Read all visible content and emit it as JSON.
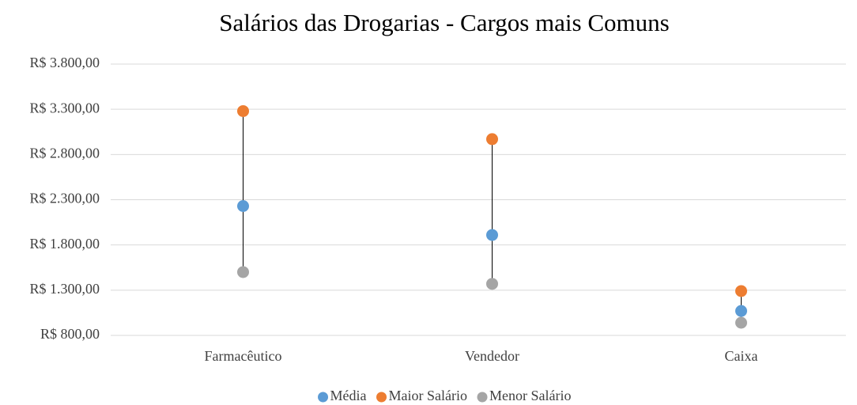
{
  "chart_data": {
    "type": "dot",
    "title": "Salários das Drogarias - Cargos mais Comuns",
    "categories": [
      "Farmacêutico",
      "Vendedor",
      "Caixa"
    ],
    "series": [
      {
        "name": "Média",
        "color": "#5b9bd5",
        "values": [
          2230,
          1910,
          1070
        ]
      },
      {
        "name": "Maior Salário",
        "color": "#ed7d31",
        "values": [
          3280,
          2970,
          1290
        ]
      },
      {
        "name": "Menor Salário",
        "color": "#a5a5a5",
        "values": [
          1500,
          1370,
          940
        ]
      }
    ],
    "ylim": [
      800,
      3800
    ],
    "yticks": [
      {
        "value": 800,
        "label": "R$ 800,00"
      },
      {
        "value": 1300,
        "label": "R$ 1.300,00"
      },
      {
        "value": 1800,
        "label": "R$ 1.800,00"
      },
      {
        "value": 2300,
        "label": "R$ 2.300,00"
      },
      {
        "value": 2800,
        "label": "R$ 2.800,00"
      },
      {
        "value": 3300,
        "label": "R$ 3.300,00"
      },
      {
        "value": 3800,
        "label": "R$ 3.800,00"
      }
    ],
    "grid": true,
    "legend": "bottom"
  }
}
